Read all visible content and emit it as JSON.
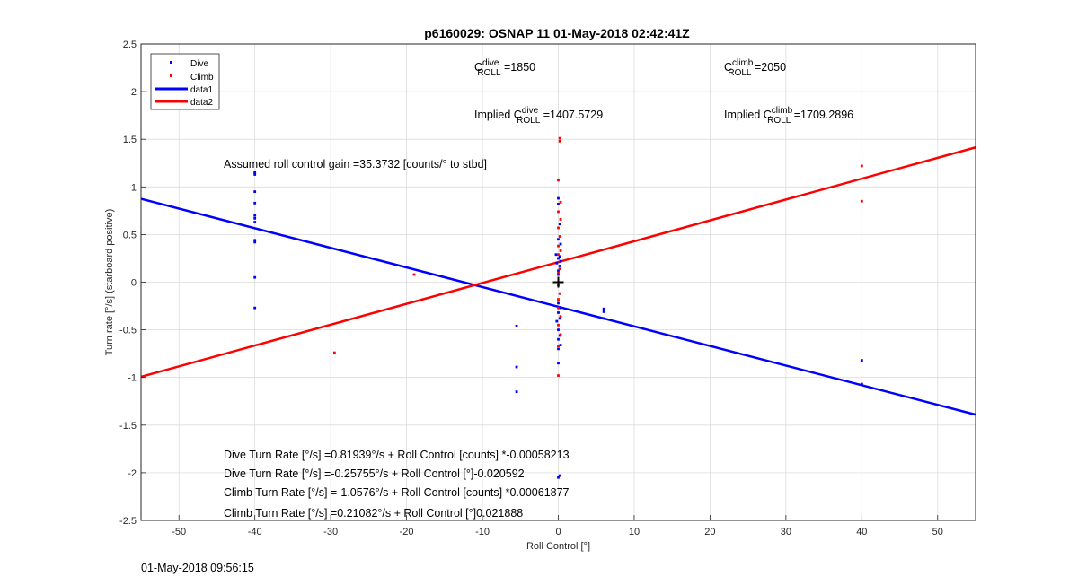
{
  "chart_data": {
    "type": "scatter",
    "title": "p6160029: OSNAP 11 01-May-2018 02:42:41Z",
    "xlabel": "Roll Control [°]",
    "ylabel": "Turn rate [°/s] (starboard positive)",
    "xlim": [
      -55,
      55
    ],
    "ylim": [
      -2.5,
      2.5
    ],
    "xticks": [
      -50,
      -40,
      -30,
      -20,
      -10,
      0,
      10,
      20,
      30,
      40,
      50
    ],
    "yticks": [
      -2.5,
      -2,
      -1.5,
      -1,
      -0.5,
      0,
      0.5,
      1,
      1.5,
      2,
      2.5
    ],
    "grid": true,
    "legend_position": "top-left",
    "legend": [
      {
        "label": "Dive",
        "kind": "marker",
        "color": "#0000ff"
      },
      {
        "label": "Climb",
        "kind": "marker",
        "color": "#ff0000"
      },
      {
        "label": "data1",
        "kind": "line",
        "color": "#0000ff"
      },
      {
        "label": "data2",
        "kind": "line",
        "color": "#ff0000"
      }
    ],
    "series": [
      {
        "name": "Dive",
        "type": "scatter",
        "color": "#0000ff",
        "points": [
          [
            -40,
            1.15
          ],
          [
            -40,
            1.13
          ],
          [
            -40,
            0.95
          ],
          [
            -40,
            0.83
          ],
          [
            -40,
            0.7
          ],
          [
            -40,
            0.67
          ],
          [
            -40,
            0.63
          ],
          [
            -40,
            0.44
          ],
          [
            -40,
            0.42
          ],
          [
            -40,
            0.05
          ],
          [
            -40,
            -0.27
          ],
          [
            -5.5,
            -0.46
          ],
          [
            -5.5,
            -0.89
          ],
          [
            -5.5,
            -1.15
          ],
          [
            0,
            0.88
          ],
          [
            0,
            0.82
          ],
          [
            0.2,
            0.61
          ],
          [
            0,
            0.45
          ],
          [
            0.3,
            0.4
          ],
          [
            -0.3,
            0.29
          ],
          [
            0.2,
            0.27
          ],
          [
            0,
            0.25
          ],
          [
            0.3,
            0.22
          ],
          [
            -0.2,
            0.2
          ],
          [
            0.2,
            0.17
          ],
          [
            0,
            0.12
          ],
          [
            0,
            0.08
          ],
          [
            0,
            -0.22
          ],
          [
            0.2,
            -0.27
          ],
          [
            0,
            -0.32
          ],
          [
            0.2,
            -0.38
          ],
          [
            -0.2,
            -0.41
          ],
          [
            0,
            -0.5
          ],
          [
            0.2,
            -0.56
          ],
          [
            0,
            -0.6
          ],
          [
            0.3,
            -0.66
          ],
          [
            0,
            -0.7
          ],
          [
            0,
            -0.85
          ],
          [
            0.2,
            -2.03
          ],
          [
            0,
            -2.05
          ],
          [
            6,
            -0.28
          ],
          [
            6,
            -0.31
          ],
          [
            6,
            -0.38
          ],
          [
            40,
            -0.82
          ],
          [
            40,
            -1.07
          ]
        ]
      },
      {
        "name": "Climb",
        "type": "scatter",
        "color": "#ff0000",
        "points": [
          [
            0.2,
            1.51
          ],
          [
            0.2,
            1.48
          ],
          [
            0,
            1.07
          ],
          [
            0.3,
            0.84
          ],
          [
            0,
            0.74
          ],
          [
            0.3,
            0.66
          ],
          [
            0,
            0.57
          ],
          [
            0.2,
            0.48
          ],
          [
            0,
            0.38
          ],
          [
            0.3,
            0.33
          ],
          [
            0,
            0.29
          ],
          [
            0.2,
            0.14
          ],
          [
            0,
            0.1
          ],
          [
            0,
            -0.03
          ],
          [
            0.2,
            -0.12
          ],
          [
            0,
            -0.18
          ],
          [
            0,
            -0.27
          ],
          [
            0.3,
            -0.36
          ],
          [
            0,
            -0.45
          ],
          [
            0.3,
            -0.55
          ],
          [
            0,
            -0.67
          ],
          [
            0,
            -0.98
          ],
          [
            -19,
            0.08
          ],
          [
            -29.5,
            -0.74
          ],
          [
            40,
            1.22
          ],
          [
            40,
            0.85
          ]
        ]
      },
      {
        "name": "data1",
        "type": "line",
        "color": "#0000ff",
        "slope": -0.020592,
        "intercept": -0.25755
      },
      {
        "name": "data2",
        "type": "line",
        "color": "#ff0000",
        "slope": 0.021888,
        "intercept": 0.21082
      }
    ],
    "marker": {
      "x": 0,
      "y": 0,
      "symbol": "+",
      "color": "#000000"
    },
    "annotations": {
      "c_dive": {
        "prefix": "C",
        "sup": "dive",
        "sub": "ROLL",
        "value": " =1850"
      },
      "c_climb": {
        "prefix": "C",
        "sup": "climb",
        "sub": "ROLL",
        "value": " =2050"
      },
      "implied_dive": {
        "prefix": "Implied C",
        "sup": "dive",
        "sub": "ROLL",
        "value": " =1407.5729"
      },
      "implied_climb": {
        "prefix": "Implied C",
        "sup": "climb",
        "sub": "ROLL",
        "value": " =1709.2896"
      },
      "gain": "Assumed roll control gain =35.3732 [counts/° to stbd]",
      "fit_lines": [
        "Dive Turn Rate [°/s] =0.81939°/s + Roll Control [counts] *-0.00058213",
        "Dive Turn Rate [°/s] =-0.25755°/s + Roll Control [°]-0.020592",
        "Climb Turn Rate [°/s] =-1.0576°/s + Roll Control [counts] *0.00061877",
        "Climb Turn Rate [°/s] =0.21082°/s + Roll Control [°]0.021888"
      ]
    }
  },
  "footer": {
    "timestamp": "01-May-2018 09:56:15"
  }
}
